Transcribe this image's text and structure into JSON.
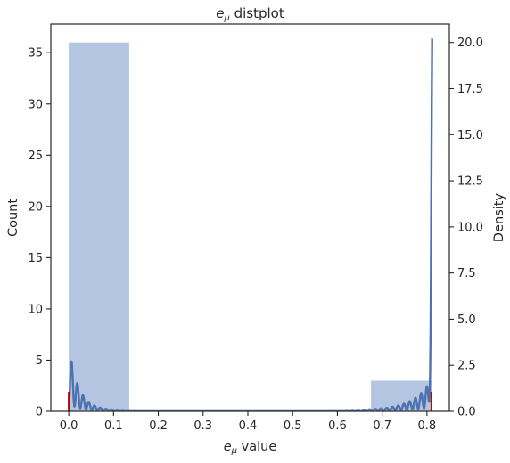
{
  "chart_data": {
    "type": "bar",
    "title_prefix": "e",
    "title_subscript": "μ",
    "title_suffix": " distplot",
    "xlabel_prefix": "e",
    "xlabel_subscript": "μ",
    "xlabel_suffix": " value",
    "ylabel_left": "Count",
    "ylabel_right": "Density",
    "xlim": [
      -0.04,
      0.85
    ],
    "ylim_left": [
      0,
      37.8
    ],
    "ylim_right": [
      0,
      21.0
    ],
    "xticks": [
      "0.0",
      "0.1",
      "0.2",
      "0.3",
      "0.4",
      "0.5",
      "0.6",
      "0.7",
      "0.8"
    ],
    "xtick_values": [
      0.0,
      0.1,
      0.2,
      0.3,
      0.4,
      0.5,
      0.6,
      0.7,
      0.8
    ],
    "yticks_left": [
      "0",
      "5",
      "10",
      "15",
      "20",
      "25",
      "30",
      "35"
    ],
    "ytick_values_left": [
      0,
      5,
      10,
      15,
      20,
      25,
      30,
      35
    ],
    "yticks_right": [
      "0.0",
      "2.5",
      "5.0",
      "7.5",
      "10.0",
      "12.5",
      "15.0",
      "17.5",
      "20.0"
    ],
    "ytick_values_right": [
      0,
      2.5,
      5,
      7.5,
      10,
      12.5,
      15,
      17.5,
      20
    ],
    "histogram": {
      "name": "Count",
      "color": "#b3c5e0",
      "bins": [
        {
          "x0": 0.0,
          "x1": 0.135,
          "count": 36
        },
        {
          "x0": 0.135,
          "x1": 0.27,
          "count": 0
        },
        {
          "x0": 0.27,
          "x1": 0.405,
          "count": 0
        },
        {
          "x0": 0.405,
          "x1": 0.54,
          "count": 0
        },
        {
          "x0": 0.54,
          "x1": 0.675,
          "count": 0
        },
        {
          "x0": 0.675,
          "x1": 0.81,
          "count": 3
        }
      ]
    },
    "kde": {
      "name": "Density",
      "color": "#4c72b0",
      "peak_left_x": 0.0065,
      "peak_left_y": 3.55,
      "peak_right_x": 0.8125,
      "peak_right_y": 20.0,
      "ripple_period": 0.0128
    },
    "rug": {
      "color": "#c00000",
      "x": [
        0.0,
        0.81
      ]
    },
    "grid": false
  }
}
